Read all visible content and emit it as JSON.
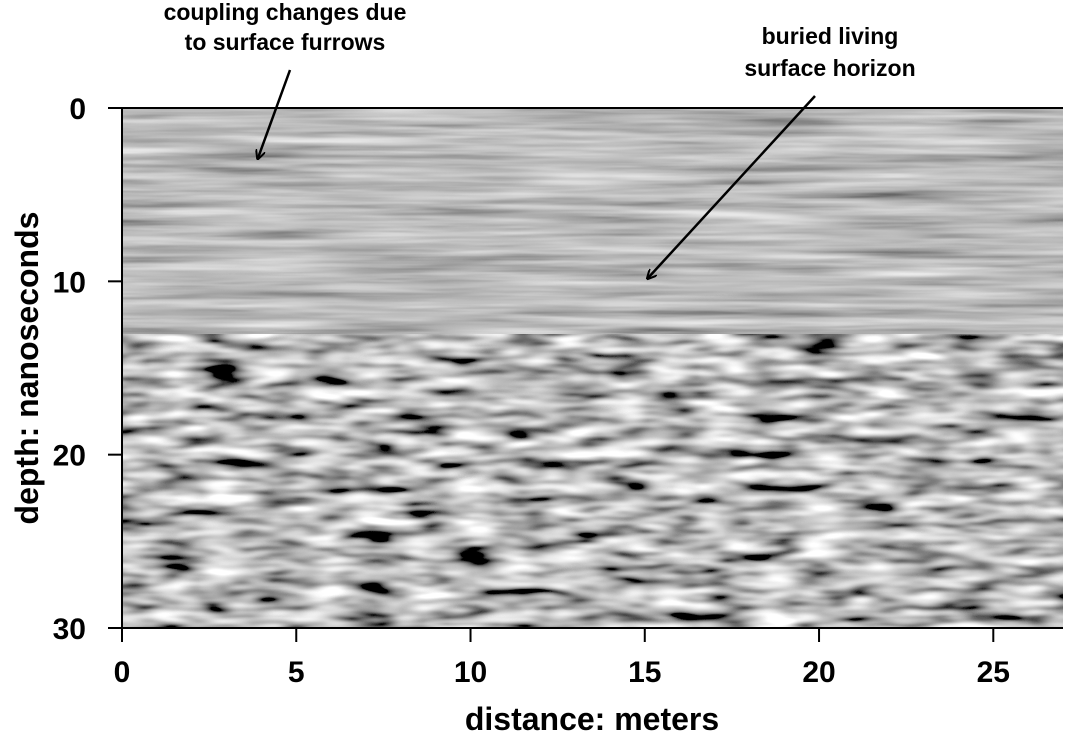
{
  "chart_data": {
    "type": "radargram",
    "x_label": "distance: meters",
    "y_label": "depth: nanoseconds",
    "xlim": [
      0,
      27
    ],
    "ylim": [
      0,
      30
    ],
    "xticks": [
      0,
      5,
      10,
      15,
      20,
      25
    ],
    "yticks": [
      0,
      10,
      20,
      30
    ],
    "y_inverted": true,
    "annotations": [
      {
        "lines": [
          "coupling changes due",
          "to surface furrows"
        ]
      },
      {
        "lines": [
          "buried living",
          "surface horizon"
        ]
      }
    ]
  }
}
